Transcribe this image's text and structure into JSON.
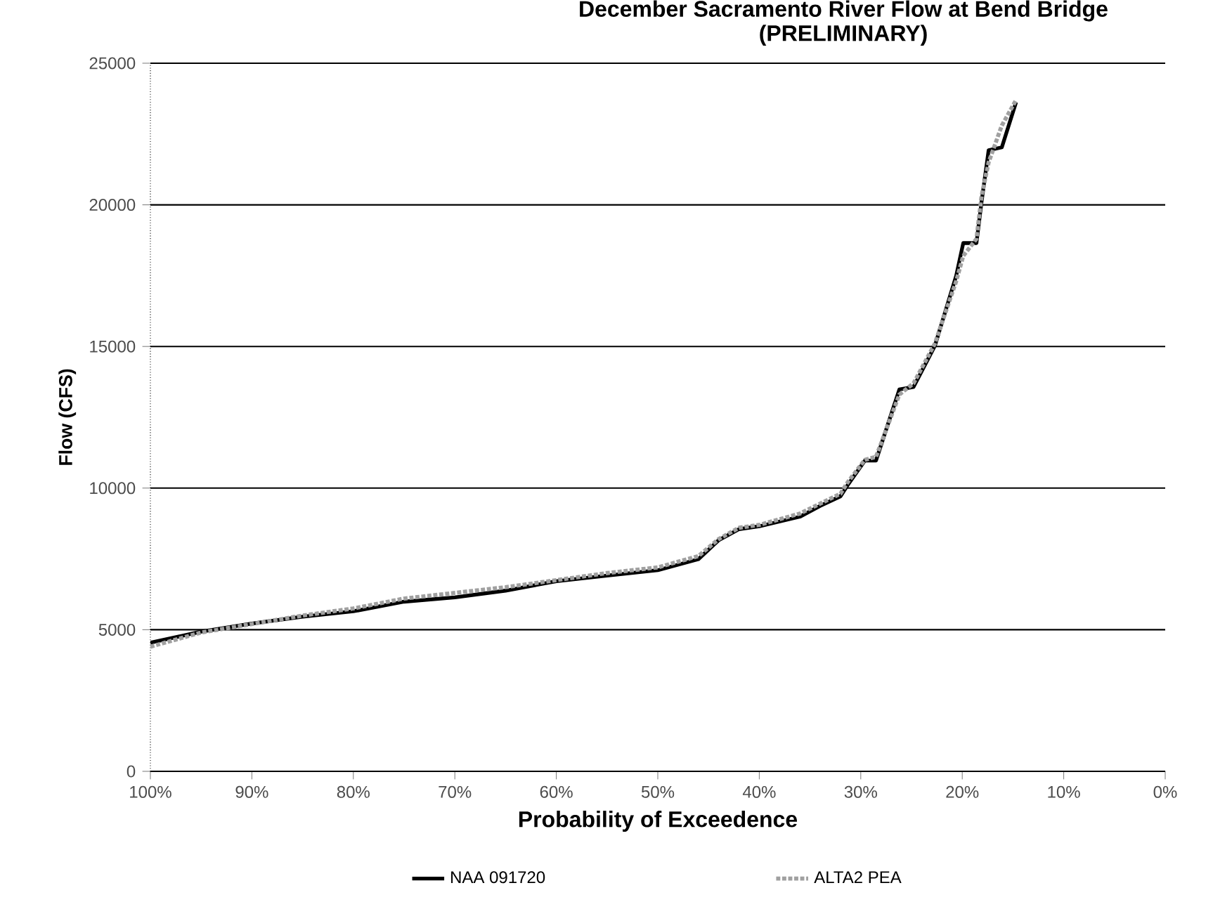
{
  "chart_data": {
    "type": "line",
    "title": "December Sacramento River Flow at Bend Bridge\n(PRELIMINARY)",
    "xlabel": "Probability of Exceedence",
    "ylabel": "Flow (CFS)",
    "xlim": [
      100,
      0
    ],
    "ylim": [
      0,
      25000
    ],
    "xticks": [
      {
        "value": 100,
        "label": "100%"
      },
      {
        "value": 90,
        "label": "90%"
      },
      {
        "value": 80,
        "label": "80%"
      },
      {
        "value": 70,
        "label": "70%"
      },
      {
        "value": 60,
        "label": "60%"
      },
      {
        "value": 50,
        "label": "50%"
      },
      {
        "value": 40,
        "label": "40%"
      },
      {
        "value": 30,
        "label": "30%"
      },
      {
        "value": 20,
        "label": "20%"
      },
      {
        "value": 10,
        "label": "10%"
      },
      {
        "value": 0,
        "label": "0%"
      }
    ],
    "yticks": [
      0,
      5000,
      10000,
      15000,
      20000,
      25000
    ],
    "grid": "y",
    "legend": "bottom",
    "series": [
      {
        "name": "NAA 091720",
        "color": "#000000",
        "line_style": "solid",
        "x": [
          100,
          95,
          90,
          85,
          80,
          75,
          70,
          65,
          60,
          55,
          50,
          46,
          44,
          42,
          40,
          36,
          34,
          32,
          31.3,
          29.6,
          28.5,
          26.2,
          24.8,
          22.7,
          20.6,
          19.9,
          18.6,
          18.1,
          17.4,
          16.1,
          14.7
        ],
        "values": [
          4540,
          4930,
          5220,
          5460,
          5650,
          5990,
          6140,
          6380,
          6710,
          6910,
          7100,
          7490,
          8160,
          8550,
          8650,
          8990,
          9370,
          9710,
          10100,
          10970,
          10970,
          13480,
          13570,
          15020,
          17490,
          18650,
          18650,
          20100,
          21930,
          22030,
          23620
        ]
      },
      {
        "name": "ALTA2 PEA",
        "color": "#a0a0a0",
        "line_style": "dotted",
        "x": [
          100,
          95,
          90,
          85,
          80,
          75,
          70,
          65,
          60,
          55,
          50,
          46,
          44,
          42,
          40,
          36,
          34,
          32,
          31.3,
          29.6,
          28.5,
          26.2,
          24.8,
          22.7,
          20.6,
          19.9,
          18.6,
          18.1,
          17.4,
          16.1,
          14.7
        ],
        "values": [
          4400,
          4900,
          5200,
          5500,
          5750,
          6100,
          6300,
          6500,
          6750,
          7000,
          7200,
          7600,
          8200,
          8600,
          8700,
          9100,
          9450,
          9800,
          10200,
          11000,
          11100,
          13300,
          13700,
          15100,
          17300,
          18200,
          18800,
          20300,
          21500,
          22800,
          23700
        ]
      }
    ]
  }
}
